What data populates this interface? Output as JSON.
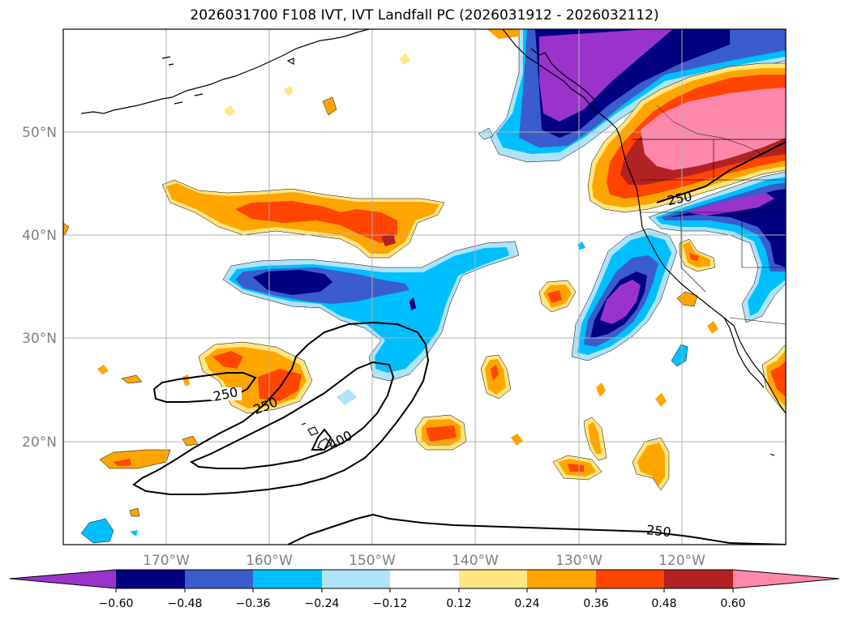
{
  "title": "2026031700 F108 IVT, IVT Landfall PC (2026031912 - 2026032112)",
  "lat_labels": [
    "50°N",
    "40°N",
    "30°N",
    "20°N"
  ],
  "lon_labels": [
    "170°W",
    "160°W",
    "150°W",
    "140°W",
    "130°W",
    "120°W"
  ],
  "contour_labels": [
    "250",
    "250",
    "400",
    "250",
    "250"
  ],
  "colorbar": {
    "ticks": [
      "−0.60",
      "−0.48",
      "−0.36",
      "−0.24",
      "−0.12",
      "0.12",
      "0.24",
      "0.36",
      "0.48",
      "0.60"
    ],
    "colors": [
      "#9a33cc",
      "#000080",
      "#3a5ccc",
      "#00bfff",
      "#aee3f9",
      "#ffffff",
      "#ffe680",
      "#ffa500",
      "#ff4500",
      "#b22222",
      "#ff88aa"
    ]
  },
  "legend_colors": {
    "purple": "#9a33cc",
    "navy": "#000080",
    "royal": "#3a5ccc",
    "sky": "#00bfff",
    "pale_blue": "#aee3f9",
    "pale_yellow": "#ffe680",
    "orange": "#ffa500",
    "red_orange": "#ff4500",
    "dark_red": "#b22222",
    "pink": "#ff88aa"
  }
}
